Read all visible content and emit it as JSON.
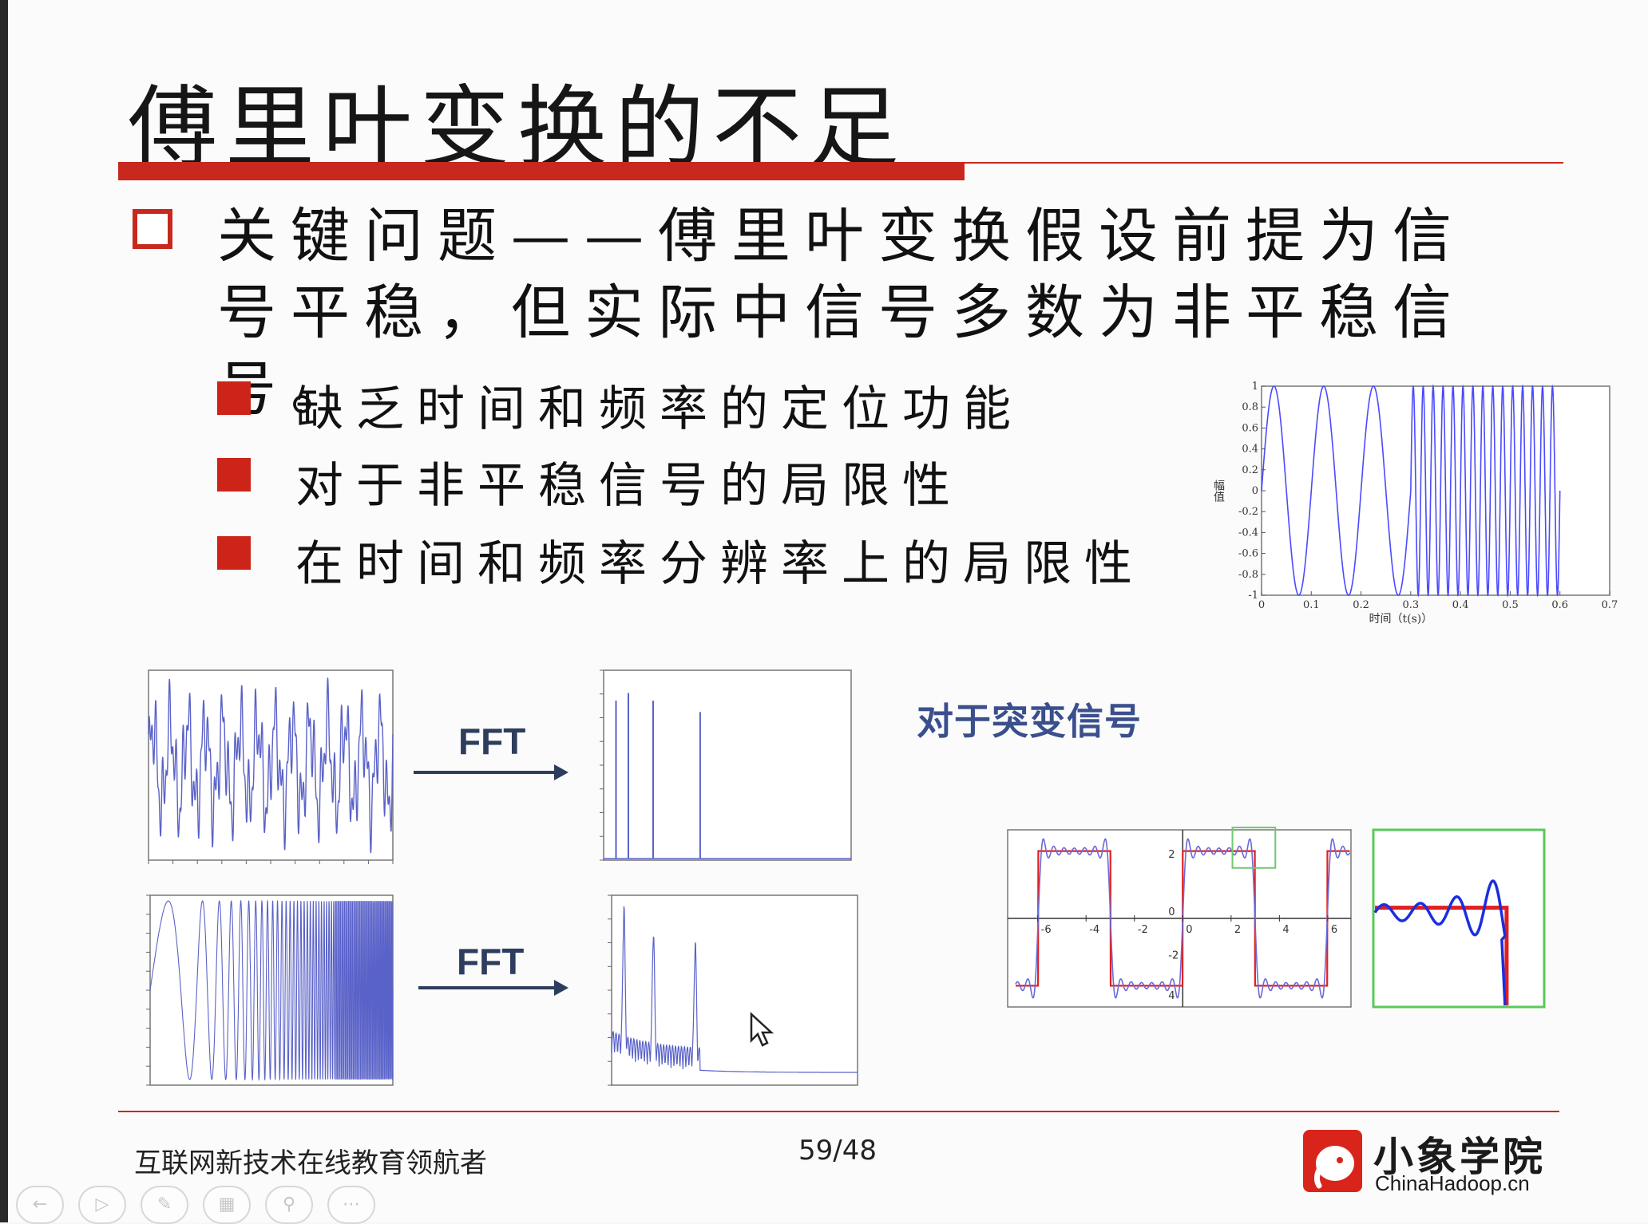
{
  "slide": {
    "title": "傅里叶变换的不足",
    "main_point": "关键问题——傅里叶变换假设前提为信号平稳，但实际中信号多数为非平稳信号。",
    "bullets": [
      {
        "label": "缺乏时间和频率的定位功能"
      },
      {
        "label": "对于非平稳信号的局限性"
      },
      {
        "label": "在时间和频率分辨率上的局限性"
      }
    ],
    "fft_labels": [
      "FFT",
      "FFT"
    ],
    "sudden_signal_label": "对于突变信号",
    "accent_color": "#c8281e"
  },
  "footer": {
    "tagline": "互联网新技术在线教育领航者",
    "page_number": "59/48",
    "logo_name": "小象学院",
    "logo_url_text": "ChinaHadoop.cn"
  },
  "toolbar": {
    "icons": [
      "back-icon",
      "forward-icon",
      "pen-icon",
      "slides-icon",
      "zoom-icon",
      "more-icon"
    ]
  },
  "chart_data": [
    {
      "type": "line",
      "ylabel": "幅值",
      "xlabel": "时间（t(s)）",
      "xlim": [
        0,
        0.7
      ],
      "ylim": [
        -1,
        1
      ],
      "x_ticks": [
        "0",
        "0.1",
        "0.2",
        "0.3",
        "0.4",
        "0.5",
        "0.6",
        "0.7"
      ],
      "y_ticks": [
        "1",
        "0.8",
        "0.6",
        "0.4",
        "0.2",
        "0",
        "-0.2",
        "-0.4",
        "-0.6",
        "-0.8",
        "-1"
      ],
      "segments": [
        {
          "t_start": 0.0,
          "t_end": 0.3,
          "frequency_hz": 10
        },
        {
          "t_start": 0.3,
          "t_end": 0.6,
          "frequency_hz": 50
        }
      ],
      "color": "#4a4aff"
    },
    {
      "type": "line",
      "description_key": "stationary-signal-time",
      "color": "#5a62c8"
    },
    {
      "type": "line",
      "description_key": "stationary-signal-spectrum",
      "peaks": 4,
      "color": "#5a62c8"
    },
    {
      "type": "line",
      "description_key": "chirp-signal-time",
      "color": "#5a62c8"
    },
    {
      "type": "line",
      "description_key": "chirp-signal-spectrum",
      "color": "#5a62c8"
    },
    {
      "type": "line",
      "description_key": "square-wave-fourier",
      "x_ticks": [
        "-6",
        "-4",
        "-2",
        "0",
        "2",
        "4",
        "6"
      ],
      "y_ticks": [
        "2",
        "0",
        "-2",
        "4"
      ]
    }
  ]
}
